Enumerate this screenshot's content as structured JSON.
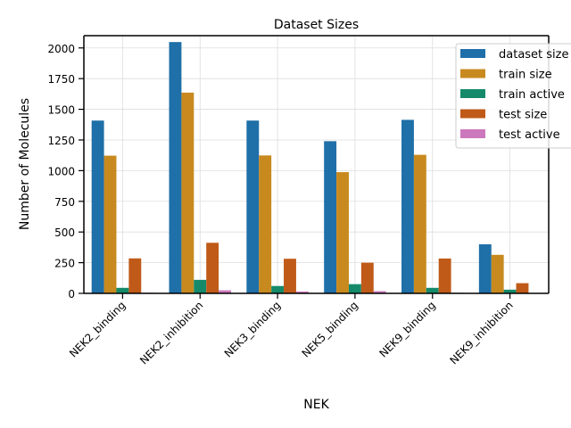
{
  "chart_data": {
    "type": "bar",
    "title": "Dataset Sizes",
    "xlabel": "NEK",
    "ylabel": "Number of Molecules",
    "ylim": [
      0,
      2100
    ],
    "yticks": [
      0,
      250,
      500,
      750,
      1000,
      1250,
      1500,
      1750,
      2000
    ],
    "grid": true,
    "legend_position": "top-right",
    "categories": [
      "NEK2_binding",
      "NEK2_inhibition",
      "NEK3_binding",
      "NEK5_binding",
      "NEK9_binding",
      "NEK9_inhibition"
    ],
    "series": [
      {
        "name": "dataset size",
        "color": "#1f6fa8",
        "values": [
          1408,
          2048,
          1408,
          1240,
          1414,
          400
        ]
      },
      {
        "name": "train size",
        "color": "#c88a1f",
        "values": [
          1122,
          1636,
          1124,
          988,
          1129,
          314
        ]
      },
      {
        "name": "train active",
        "color": "#158a6a",
        "values": [
          45,
          110,
          60,
          75,
          45,
          30
        ]
      },
      {
        "name": "test size",
        "color": "#c05a18",
        "values": [
          285,
          412,
          282,
          250,
          284,
          83
        ]
      },
      {
        "name": "test active",
        "color": "#cc78bc",
        "values": [
          5,
          25,
          15,
          18,
          5,
          3
        ]
      }
    ]
  }
}
